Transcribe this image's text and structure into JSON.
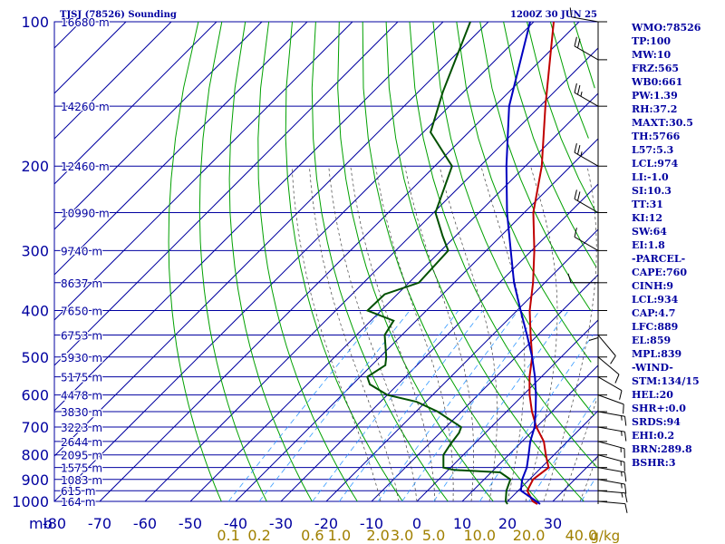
{
  "header": {
    "station": "TJSJ (78526) Sounding",
    "time": "1200Z 30 JUN 25"
  },
  "indices": [
    "WMO:78526",
    "TP:100",
    "MW:10",
    "FRZ:565",
    "WB0:661",
    "PW:1.39",
    "RH:37.2",
    "MAXT:30.5",
    "TH:5766",
    "L57:5.3",
    "LCL:974",
    "LI:-1.0",
    "SI:10.3",
    "TT:31",
    "KI:12",
    "SW:64",
    "EI:1.8",
    "-PARCEL-",
    "CAPE:760",
    "CINH:9",
    "LCL:934",
    "CAP:4.7",
    "LFC:889",
    "EL:859",
    "MPL:839",
    "-WIND-",
    "STM:134/15",
    "HEL:20",
    "SHR+:0.0",
    "SRDS:94",
    "EHI:0.2",
    "BRN:289.8",
    "BSHR:3"
  ],
  "colors": {
    "isobar_isotherm": "#0000a0",
    "dry_adiabat": "#00a000",
    "moist_adiabat": "#404040",
    "mixing_ratio": "#3399ff",
    "temperature": "#c00000",
    "dewpoint": "#005000",
    "parcel": "#0000c0",
    "wind": "#000000"
  },
  "chart_data": {
    "type": "line",
    "title": "TJSJ (78526) Sounding",
    "subtitle": "1200Z 30 JUN 25",
    "x_unit_label": "mb",
    "y_scale": "log-pressure",
    "pressure_levels": [
      100,
      200,
      300,
      400,
      500,
      600,
      700,
      800,
      900,
      1000
    ],
    "temperature_ticks": [
      -80,
      -70,
      -60,
      -50,
      -40,
      -30,
      -20,
      -10,
      0,
      10,
      20,
      30
    ],
    "mixing_ratio_labels": [
      "0.1",
      "0.2",
      "0.6",
      "1.0",
      "2.0",
      "3.0",
      "5.0",
      "10.0",
      "20.0",
      "40.0"
    ],
    "mixing_ratio_unit": "g/kg",
    "height_labels": [
      {
        "p": 100,
        "h": "16680 m"
      },
      {
        "p": 150,
        "h": "14260 m"
      },
      {
        "p": 200,
        "h": "12460 m"
      },
      {
        "p": 250,
        "h": "10990 m"
      },
      {
        "p": 300,
        "h": "9740 m"
      },
      {
        "p": 350,
        "h": "8637 m"
      },
      {
        "p": 400,
        "h": "7650 m"
      },
      {
        "p": 450,
        "h": "6753 m"
      },
      {
        "p": 500,
        "h": "5930 m"
      },
      {
        "p": 550,
        "h": "5175 m"
      },
      {
        "p": 600,
        "h": "4478 m"
      },
      {
        "p": 650,
        "h": "3830 m"
      },
      {
        "p": 700,
        "h": "3223 m"
      },
      {
        "p": 750,
        "h": "2644 m"
      },
      {
        "p": 800,
        "h": "2095 m"
      },
      {
        "p": 850,
        "h": "1575 m"
      },
      {
        "p": 900,
        "h": "1083 m"
      },
      {
        "p": 950,
        "h": "615 m"
      },
      {
        "p": 1000,
        "h": "164 m"
      }
    ],
    "series": [
      {
        "key": "temperature",
        "points": [
          [
            1013,
            27.2
          ],
          [
            1000,
            25.6
          ],
          [
            950,
            22.0
          ],
          [
            900,
            20.8
          ],
          [
            850,
            21.6
          ],
          [
            800,
            18.2
          ],
          [
            750,
            14.8
          ],
          [
            700,
            10.0
          ],
          [
            650,
            5.6
          ],
          [
            600,
            1.4
          ],
          [
            550,
            -2.6
          ],
          [
            500,
            -6.4
          ],
          [
            450,
            -11.6
          ],
          [
            400,
            -17.2
          ],
          [
            350,
            -22.6
          ],
          [
            300,
            -29.4
          ],
          [
            250,
            -38.0
          ],
          [
            200,
            -46.4
          ],
          [
            150,
            -58.8
          ],
          [
            100,
            -75.6
          ]
        ]
      },
      {
        "key": "dewpoint",
        "points": [
          [
            1013,
            20.6
          ],
          [
            1000,
            19.6
          ],
          [
            950,
            17.4
          ],
          [
            900,
            15.8
          ],
          [
            870,
            12.0
          ],
          [
            860,
            1.2
          ],
          [
            850,
            -1.6
          ],
          [
            800,
            -4.4
          ],
          [
            760,
            -5.2
          ],
          [
            720,
            -5.8
          ],
          [
            700,
            -6.6
          ],
          [
            650,
            -15.2
          ],
          [
            620,
            -22.0
          ],
          [
            600,
            -30.0
          ],
          [
            570,
            -36.2
          ],
          [
            550,
            -38.4
          ],
          [
            520,
            -37.0
          ],
          [
            500,
            -38.6
          ],
          [
            450,
            -43.8
          ],
          [
            420,
            -45.0
          ],
          [
            400,
            -53.0
          ],
          [
            370,
            -52.8
          ],
          [
            350,
            -47.8
          ],
          [
            300,
            -48.4
          ],
          [
            280,
            -52.8
          ],
          [
            250,
            -59.6
          ],
          [
            200,
            -66.2
          ],
          [
            170,
            -78.4
          ],
          [
            140,
            -84.6
          ],
          [
            100,
            -94.0
          ]
        ]
      },
      {
        "key": "parcel",
        "points": [
          [
            1013,
            27.8
          ],
          [
            1000,
            26.4
          ],
          [
            950,
            20.6
          ],
          [
            900,
            18.4
          ],
          [
            850,
            16.8
          ],
          [
            800,
            14.4
          ],
          [
            750,
            11.8
          ],
          [
            700,
            9.6
          ],
          [
            650,
            6.4
          ],
          [
            600,
            2.8
          ],
          [
            550,
            -1.4
          ],
          [
            500,
            -6.4
          ],
          [
            450,
            -12.4
          ],
          [
            400,
            -19.2
          ],
          [
            350,
            -26.8
          ],
          [
            300,
            -34.6
          ],
          [
            250,
            -43.8
          ],
          [
            200,
            -54.2
          ],
          [
            150,
            -66.8
          ],
          [
            100,
            -80.8
          ]
        ]
      }
    ],
    "wind_barbs": [
      {
        "p": 1000,
        "dir": 95,
        "spd": 10
      },
      {
        "p": 950,
        "dir": 95,
        "spd": 15
      },
      {
        "p": 900,
        "dir": 100,
        "spd": 15
      },
      {
        "p": 850,
        "dir": 100,
        "spd": 15
      },
      {
        "p": 800,
        "dir": 105,
        "spd": 15
      },
      {
        "p": 750,
        "dir": 105,
        "spd": 15
      },
      {
        "p": 700,
        "dir": 100,
        "spd": 15
      },
      {
        "p": 650,
        "dir": 100,
        "spd": 15
      },
      {
        "p": 600,
        "dir": 110,
        "spd": 10
      },
      {
        "p": 550,
        "dir": 120,
        "spd": 10
      },
      {
        "p": 500,
        "dir": 130,
        "spd": 10
      },
      {
        "p": 450,
        "dir": 140,
        "spd": 10
      },
      {
        "p": 400,
        "dir": 180,
        "spd": 10
      },
      {
        "p": 350,
        "dir": 270,
        "spd": 10
      },
      {
        "p": 300,
        "dir": 300,
        "spd": 10
      },
      {
        "p": 250,
        "dir": 300,
        "spd": 20
      },
      {
        "p": 200,
        "dir": 300,
        "spd": 25
      },
      {
        "p": 150,
        "dir": 300,
        "spd": 25
      },
      {
        "p": 120,
        "dir": 300,
        "spd": 20
      },
      {
        "p": 100,
        "dir": 280,
        "spd": 10
      }
    ]
  }
}
